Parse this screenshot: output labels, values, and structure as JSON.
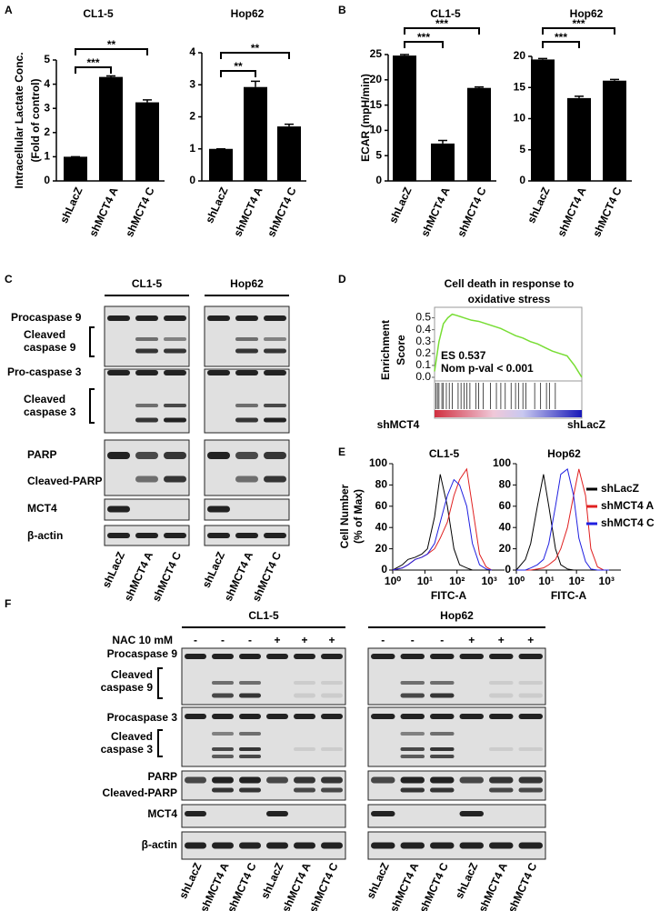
{
  "panel_labels": [
    "A",
    "B",
    "C",
    "D",
    "E",
    "F"
  ],
  "chart_data": [
    {
      "type": "bar",
      "title": "CL1-5",
      "y_label": [
        "Intracellular Lactate Conc.",
        "(Fold of control)"
      ],
      "categories": [
        "shLacZ",
        "shMCT4 A",
        "shMCT4 C"
      ],
      "values": [
        1,
        4.3,
        3.25
      ],
      "errors": [
        0,
        0.04,
        0.1
      ],
      "color": "#000000",
      "ylim": [
        0,
        5
      ],
      "yticks": [
        0,
        1,
        2,
        3,
        4,
        5
      ],
      "significance": [
        {
          "pair": [
            0,
            1
          ],
          "label": "***"
        },
        {
          "pair": [
            0,
            2
          ],
          "label": "**"
        }
      ]
    },
    {
      "type": "bar",
      "title": "Hop62",
      "categories": [
        "shLacZ",
        "shMCT4 A",
        "shMCT4 C"
      ],
      "values": [
        1,
        2.93,
        1.7
      ],
      "errors": [
        0,
        0.18,
        0.07
      ],
      "color": "#000000",
      "ylim": [
        0,
        4
      ],
      "yticks": [
        0,
        1,
        2,
        3,
        4
      ],
      "significance": [
        {
          "pair": [
            0,
            1
          ],
          "label": "**"
        },
        {
          "pair": [
            0,
            2
          ],
          "label": "**"
        }
      ]
    },
    {
      "type": "bar",
      "title": "CL1-5",
      "y_label": [
        "ECAR (mpH/min)"
      ],
      "categories": [
        "shLacZ",
        "shMCT4 A",
        "shMCT4 C"
      ],
      "values": [
        24.8,
        7.4,
        18.4
      ],
      "errors": [
        0.2,
        0.6,
        0.2
      ],
      "color": "#000000",
      "ylim": [
        0,
        25
      ],
      "yticks": [
        0,
        5,
        10,
        15,
        20,
        25
      ],
      "significance": [
        {
          "pair": [
            0,
            1
          ],
          "label": "***"
        },
        {
          "pair": [
            0,
            2
          ],
          "label": "***"
        }
      ]
    },
    {
      "type": "bar",
      "title": "Hop62",
      "categories": [
        "shLacZ",
        "shMCT4 A",
        "shMCT4 C"
      ],
      "values": [
        19.5,
        13.3,
        16.1
      ],
      "errors": [
        0.15,
        0.3,
        0.2
      ],
      "color": "#000000",
      "ylim": [
        0,
        20
      ],
      "yticks": [
        0,
        5,
        10,
        15,
        20
      ],
      "significance": [
        {
          "pair": [
            0,
            1
          ],
          "label": "***"
        },
        {
          "pair": [
            0,
            2
          ],
          "label": "***"
        }
      ]
    },
    {
      "type": "line",
      "title": [
        "Cell death in response to",
        "oxidative stress"
      ],
      "y_label": [
        "Enrichment",
        "Score"
      ],
      "x": [
        0,
        3,
        6,
        9,
        12,
        15,
        20,
        25,
        30,
        35,
        40,
        45,
        50,
        55,
        60,
        65,
        70,
        75,
        80,
        85,
        90,
        95,
        100
      ],
      "values": [
        0.05,
        0.3,
        0.45,
        0.5,
        0.53,
        0.52,
        0.5,
        0.48,
        0.47,
        0.45,
        0.43,
        0.41,
        0.38,
        0.35,
        0.33,
        0.3,
        0.28,
        0.25,
        0.22,
        0.2,
        0.18,
        0.1,
        0.0
      ],
      "color": "#77dd33",
      "xlim": [
        0,
        100
      ],
      "ylim": [
        0,
        0.55
      ],
      "yticks": [
        {
          "value": 0,
          "label": "0.0"
        },
        0.1,
        0.2,
        0.3,
        0.4,
        0.5
      ],
      "hits": [
        1,
        2,
        3,
        5,
        6,
        8,
        10,
        12,
        16,
        18,
        20,
        22,
        24,
        28,
        30,
        33,
        38,
        42,
        45,
        48,
        52,
        55,
        57,
        60,
        62,
        68,
        72,
        76,
        78,
        82
      ],
      "annotations": [
        "ES 0.537",
        "Nom p-val < 0.001"
      ],
      "left_label": "shMCT4",
      "right_label": "shLacZ"
    },
    {
      "type": "line",
      "title": "CL1-5",
      "x_label": "FITC-A",
      "y_label": [
        "Cell Number",
        "(% of Max)"
      ],
      "log_x": true,
      "x": [
        1,
        2,
        3,
        5,
        8,
        12,
        20,
        30,
        50,
        80,
        120,
        200,
        300,
        500,
        800,
        1200
      ],
      "series": [
        {
          "color": "#000000",
          "values": [
            0,
            5,
            10,
            12,
            15,
            20,
            50,
            90,
            60,
            20,
            5,
            2,
            0,
            0,
            0,
            0
          ]
        },
        {
          "color": "#e02020",
          "values": [
            0,
            2,
            5,
            10,
            12,
            15,
            20,
            30,
            45,
            70,
            85,
            95,
            60,
            15,
            3,
            0
          ]
        },
        {
          "color": "#2020e0",
          "values": [
            0,
            2,
            5,
            10,
            12,
            15,
            25,
            45,
            70,
            85,
            80,
            60,
            25,
            5,
            1,
            0
          ]
        }
      ],
      "xlim": [
        1,
        3000
      ],
      "xticks": [
        {
          "value": 1,
          "label": "10⁰"
        },
        {
          "value": 10,
          "label": "10¹"
        },
        {
          "value": 100,
          "label": "10²"
        },
        {
          "value": 1000,
          "label": "10³"
        }
      ],
      "ylim": [
        0,
        100
      ],
      "yticks": [
        0,
        20,
        40,
        60,
        80,
        100
      ]
    },
    {
      "type": "line",
      "title": "Hop62",
      "x_label": "FITC-A",
      "log_x": true,
      "legend": "right",
      "x": [
        1,
        2,
        3,
        5,
        8,
        12,
        20,
        30,
        50,
        80,
        120,
        200,
        300,
        500,
        800,
        1200
      ],
      "series": [
        {
          "name": "shLacZ",
          "color": "#000000",
          "values": [
            0,
            10,
            25,
            60,
            90,
            60,
            20,
            5,
            1,
            0,
            0,
            0,
            0,
            0,
            0,
            0
          ]
        },
        {
          "name": "shMCT4 A",
          "color": "#e02020",
          "values": [
            0,
            0,
            0,
            1,
            2,
            5,
            10,
            20,
            40,
            70,
            95,
            70,
            20,
            3,
            0,
            0
          ]
        },
        {
          "name": "shMCT4 C",
          "color": "#2020e0",
          "values": [
            0,
            0,
            2,
            5,
            10,
            25,
            60,
            90,
            95,
            70,
            30,
            8,
            1,
            0,
            0,
            0
          ]
        }
      ],
      "xlim": [
        1,
        3000
      ],
      "xticks": [
        {
          "value": 1,
          "label": "10⁰"
        },
        {
          "value": 10,
          "label": "10¹"
        },
        {
          "value": 100,
          "label": "10²"
        },
        {
          "value": 1000,
          "label": "10³"
        }
      ],
      "ylim": [
        0,
        100
      ],
      "yticks": [
        0,
        20,
        40,
        60,
        80,
        100
      ]
    }
  ],
  "blots": [
    {
      "cell_lines": [
        "CL1-5",
        "Hop62"
      ],
      "rows": [
        "Procaspase 9",
        [
          "Cleaved",
          "caspase 9"
        ],
        "Pro-caspase 3",
        [
          "Cleaved",
          "caspase 3"
        ],
        "PARP",
        "Cleaved-PARP",
        "MCT4",
        "β-actin"
      ],
      "lanes": [
        "shLacZ",
        "shMCT4 A",
        "shMCT4 C"
      ]
    },
    {
      "cell_lines": [
        "CL1-5",
        "Hop62"
      ],
      "treatment": "NAC 10 mM",
      "treatment_signs": [
        "-",
        "-",
        "-",
        "+",
        "+",
        "+"
      ],
      "rows": [
        "Procaspase 9",
        [
          "Cleaved",
          "caspase 9"
        ],
        "Procaspase 3",
        [
          "Cleaved",
          "caspase 3"
        ],
        "PARP",
        "Cleaved-PARP",
        "MCT4",
        "β-actin"
      ],
      "lanes": [
        "shLacZ",
        "shMCT4 A",
        "shMCT4 C",
        "shLacZ",
        "shMCT4 A",
        "shMCT4 C"
      ]
    }
  ]
}
